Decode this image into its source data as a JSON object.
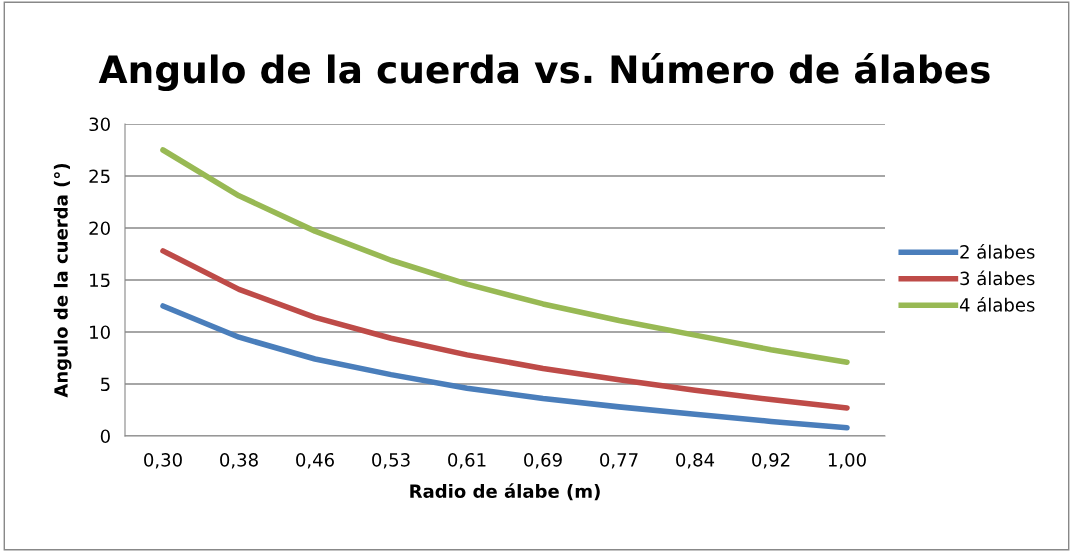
{
  "chart_data": {
    "type": "line",
    "title": "Angulo de la cuerda vs. Número de álabes",
    "xlabel": "Radio de álabe (m)",
    "ylabel": "Angulo de la cuerda (°)",
    "categories": [
      "0,30",
      "0,38",
      "0,46",
      "0,53",
      "0,61",
      "0,69",
      "0,77",
      "0,84",
      "0,92",
      "1,00"
    ],
    "series": [
      {
        "name": "2 álabes",
        "color": "#4a7ebb",
        "values": [
          12.5,
          9.5,
          7.4,
          5.9,
          4.6,
          3.6,
          2.8,
          2.1,
          1.4,
          0.8
        ]
      },
      {
        "name": "3 álabes",
        "color": "#be4b48",
        "values": [
          17.8,
          14.1,
          11.4,
          9.4,
          7.8,
          6.5,
          5.4,
          4.4,
          3.5,
          2.7
        ]
      },
      {
        "name": "4 álabes",
        "color": "#98b954",
        "values": [
          27.5,
          23.1,
          19.7,
          16.9,
          14.6,
          12.7,
          11.1,
          9.7,
          8.3,
          7.1
        ]
      }
    ],
    "ylim": [
      0,
      30
    ],
    "yticks": [
      0,
      5,
      10,
      15,
      20,
      25,
      30
    ],
    "grid": "y",
    "legend": "right",
    "marker": "none",
    "line_style": "solid"
  }
}
